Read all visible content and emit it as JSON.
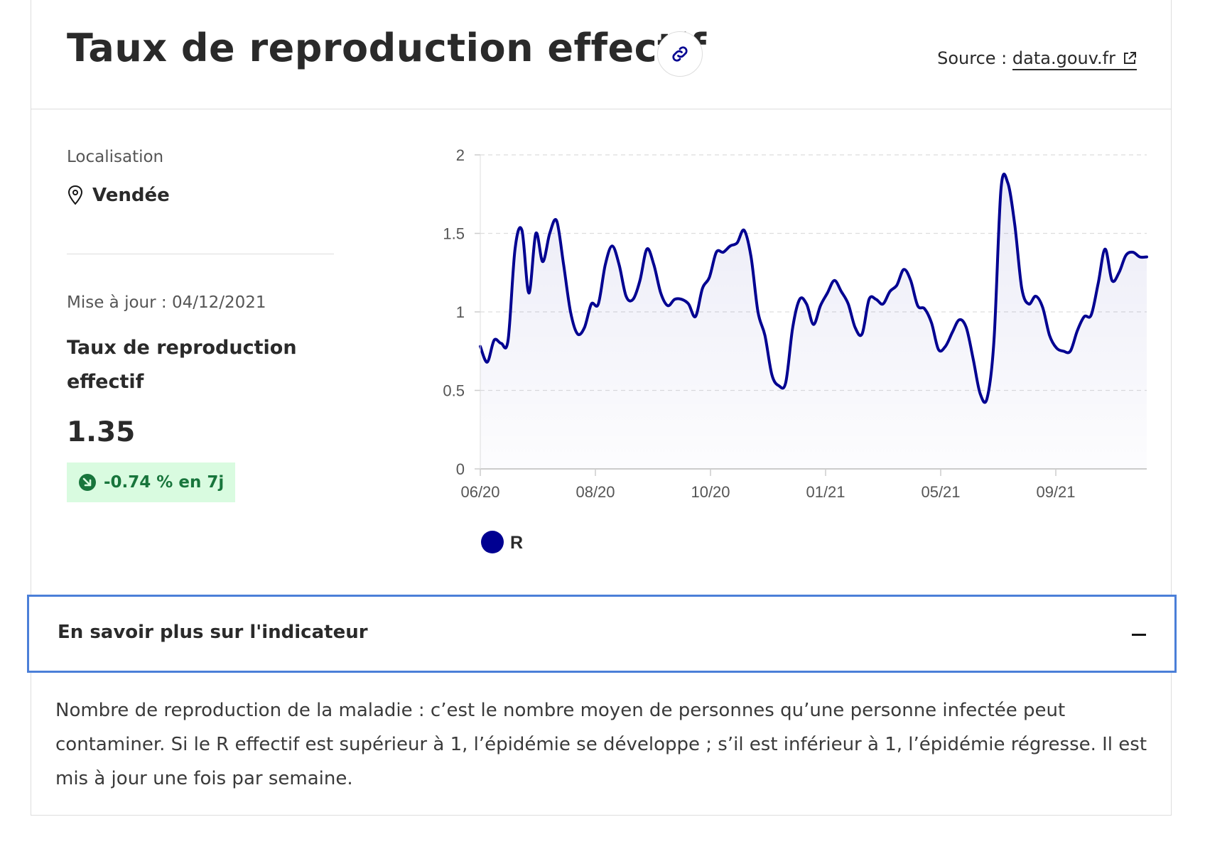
{
  "header": {
    "title": "Taux de reproduction effectif",
    "source_label": "Source : ",
    "source_link": "data.gouv.fr"
  },
  "sidebar": {
    "location_label": "Localisation",
    "location_name": "Vendée",
    "update_label": "Mise à jour : 04/12/2021",
    "metric_name": "Taux de reproduction effectif",
    "metric_value": "1.35",
    "trend": "-0.74 % en 7j"
  },
  "chart_data": {
    "type": "area",
    "title": "",
    "xlabel": "",
    "ylabel": "",
    "ylim": [
      0,
      2
    ],
    "yticks": [
      "0",
      "0.5",
      "1",
      "1.5",
      "2"
    ],
    "xticks": [
      "06/20",
      "08/20",
      "10/20",
      "01/21",
      "05/21",
      "09/21"
    ],
    "grid": true,
    "legend_position": "bottom-left",
    "series": [
      {
        "name": "R",
        "color": "#000091",
        "values": [
          0.78,
          0.68,
          0.82,
          0.8,
          0.82,
          1.4,
          1.52,
          1.12,
          1.5,
          1.32,
          1.5,
          1.58,
          1.3,
          1.0,
          0.86,
          0.9,
          1.05,
          1.05,
          1.3,
          1.42,
          1.3,
          1.1,
          1.08,
          1.2,
          1.4,
          1.3,
          1.12,
          1.04,
          1.08,
          1.08,
          1.05,
          0.97,
          1.15,
          1.22,
          1.38,
          1.38,
          1.42,
          1.44,
          1.52,
          1.35,
          1.0,
          0.85,
          0.6,
          0.53,
          0.55,
          0.9,
          1.08,
          1.05,
          0.92,
          1.04,
          1.12,
          1.2,
          1.13,
          1.05,
          0.9,
          0.86,
          1.08,
          1.08,
          1.05,
          1.13,
          1.17,
          1.27,
          1.2,
          1.04,
          1.02,
          0.93,
          0.76,
          0.78,
          0.87,
          0.95,
          0.9,
          0.7,
          0.48,
          0.45,
          0.82,
          1.78,
          1.82,
          1.55,
          1.15,
          1.05,
          1.1,
          1.03,
          0.85,
          0.77,
          0.75,
          0.75,
          0.88,
          0.97,
          0.98,
          1.18,
          1.4,
          1.2,
          1.25,
          1.36,
          1.38,
          1.35,
          1.35
        ]
      }
    ]
  },
  "accordion": {
    "title": "En savoir plus sur l'indicateur"
  },
  "description": "Nombre de reproduction de la maladie : c’est le nombre moyen de personnes qu’une personne infectée peut contaminer. Si le R effectif est supérieur à 1, l’épidémie se développe ; s’il est inférieur à 1, l’épidémie régresse. Il est mis à jour une fois par semaine.",
  "colors": {
    "accent": "#000091",
    "trend_bg": "#d9fbe0",
    "trend_text": "#18753c",
    "focus_border": "#4b7fd8"
  }
}
